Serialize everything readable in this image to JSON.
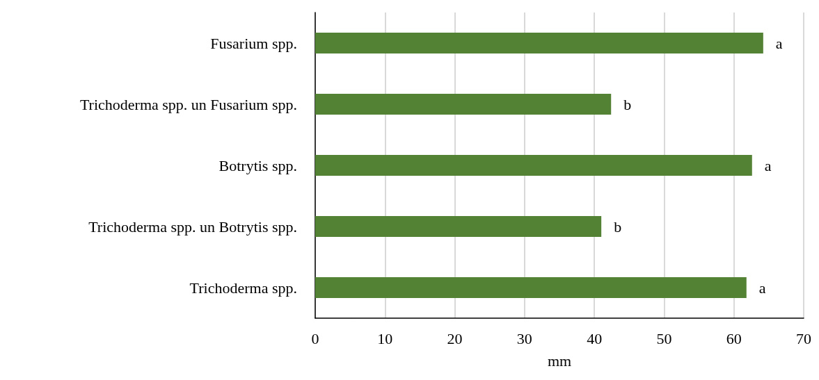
{
  "chart_data": {
    "type": "bar",
    "orientation": "horizontal",
    "xlabel": "mm",
    "categories": [
      "Fusarium spp.",
      "Trichoderma spp. un Fusarium spp.",
      "Botrytis spp.",
      "Trichoderma spp. un Botrytis spp.",
      "Trichoderma spp."
    ],
    "values": [
      64.2,
      42.4,
      62.6,
      41.0,
      61.8
    ],
    "value_labels": [
      "a",
      "b",
      "a",
      "b",
      "a"
    ],
    "color": "#548235",
    "xlim": [
      0,
      70
    ],
    "xticks": [
      0,
      10,
      20,
      30,
      40,
      50,
      60,
      70
    ],
    "grid": "x"
  }
}
